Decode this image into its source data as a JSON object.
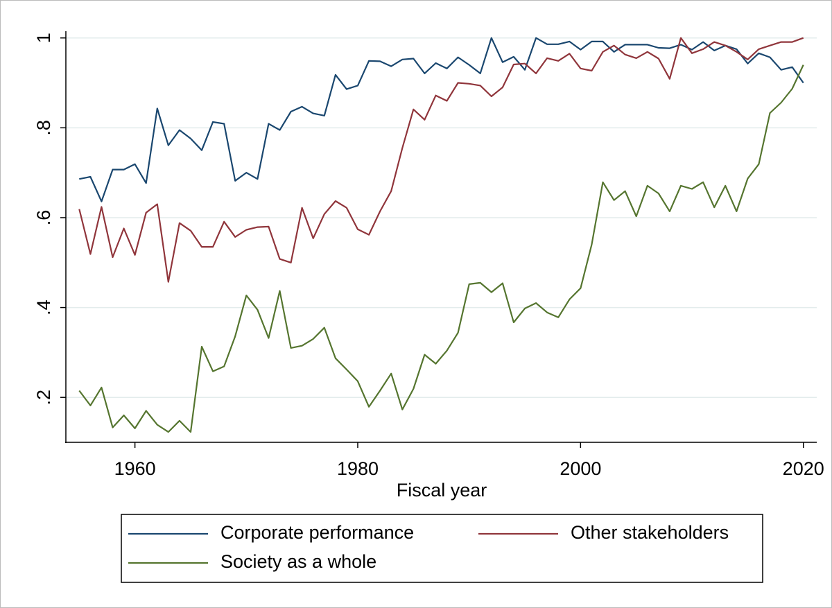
{
  "chart_data": {
    "type": "line",
    "xlabel": "Fiscal year",
    "x": [
      1955,
      1956,
      1957,
      1958,
      1959,
      1960,
      1961,
      1962,
      1963,
      1964,
      1965,
      1966,
      1967,
      1968,
      1969,
      1970,
      1971,
      1972,
      1973,
      1974,
      1975,
      1976,
      1977,
      1978,
      1979,
      1980,
      1981,
      1982,
      1983,
      1984,
      1985,
      1986,
      1987,
      1988,
      1989,
      1990,
      1991,
      1992,
      1993,
      1994,
      1995,
      1996,
      1997,
      1998,
      1999,
      2000,
      2001,
      2002,
      2003,
      2004,
      2005,
      2006,
      2007,
      2008,
      2009,
      2010,
      2011,
      2012,
      2013,
      2014,
      2015,
      2016,
      2017,
      2018,
      2019,
      2020
    ],
    "series": [
      {
        "name": "Corporate performance",
        "color": "#1a476f",
        "values": [
          0.686,
          0.691,
          0.636,
          0.707,
          0.707,
          0.719,
          0.677,
          0.843,
          0.761,
          0.795,
          0.776,
          0.75,
          0.813,
          0.809,
          0.682,
          0.7,
          0.686,
          0.809,
          0.795,
          0.836,
          0.847,
          0.832,
          0.827,
          0.918,
          0.886,
          0.894,
          0.949,
          0.948,
          0.937,
          0.952,
          0.954,
          0.921,
          0.944,
          0.932,
          0.957,
          0.94,
          0.921,
          1.0,
          0.946,
          0.958,
          0.929,
          1.0,
          0.986,
          0.986,
          0.992,
          0.974,
          0.992,
          0.992,
          0.969,
          0.985,
          0.985,
          0.985,
          0.978,
          0.977,
          0.985,
          0.974,
          0.991,
          0.972,
          0.983,
          0.975,
          0.943,
          0.966,
          0.957,
          0.929,
          0.935,
          0.9
        ]
      },
      {
        "name": "Other stakeholders",
        "color": "#90353b",
        "values": [
          0.619,
          0.519,
          0.624,
          0.512,
          0.576,
          0.517,
          0.611,
          0.63,
          0.457,
          0.588,
          0.571,
          0.535,
          0.535,
          0.591,
          0.557,
          0.573,
          0.579,
          0.58,
          0.508,
          0.5,
          0.622,
          0.554,
          0.608,
          0.637,
          0.622,
          0.574,
          0.562,
          0.614,
          0.659,
          0.755,
          0.841,
          0.818,
          0.872,
          0.86,
          0.9,
          0.898,
          0.894,
          0.87,
          0.89,
          0.941,
          0.943,
          0.921,
          0.955,
          0.949,
          0.965,
          0.932,
          0.927,
          0.969,
          0.983,
          0.963,
          0.955,
          0.969,
          0.954,
          0.909,
          1.0,
          0.966,
          0.975,
          0.991,
          0.983,
          0.969,
          0.952,
          0.975,
          0.983,
          0.991,
          0.991,
          1.0
        ]
      },
      {
        "name": "Society as a whole",
        "color": "#55752f",
        "values": [
          0.215,
          0.182,
          0.222,
          0.133,
          0.16,
          0.131,
          0.17,
          0.139,
          0.123,
          0.148,
          0.123,
          0.313,
          0.258,
          0.269,
          0.336,
          0.427,
          0.395,
          0.332,
          0.437,
          0.31,
          0.315,
          0.33,
          0.355,
          0.287,
          0.262,
          0.236,
          0.179,
          0.215,
          0.253,
          0.173,
          0.219,
          0.295,
          0.275,
          0.304,
          0.344,
          0.452,
          0.455,
          0.434,
          0.454,
          0.367,
          0.398,
          0.41,
          0.389,
          0.378,
          0.418,
          0.443,
          0.54,
          0.679,
          0.639,
          0.659,
          0.603,
          0.671,
          0.654,
          0.614,
          0.671,
          0.664,
          0.679,
          0.623,
          0.671,
          0.614,
          0.687,
          0.719,
          0.833,
          0.856,
          0.887,
          0.94
        ]
      }
    ],
    "xlim": [
      1953.8,
      2021.2
    ],
    "xticks": [
      1960,
      1980,
      2000,
      2020
    ],
    "ylim": [
      0.1,
      1.015
    ],
    "yticks": [
      {
        "value": 0.2,
        "label": ".2"
      },
      {
        "value": 0.4,
        "label": ".4"
      },
      {
        "value": 0.6,
        "label": ".6"
      },
      {
        "value": 0.8,
        "label": ".8"
      },
      1
    ],
    "grid": true,
    "legend": "bottom"
  }
}
